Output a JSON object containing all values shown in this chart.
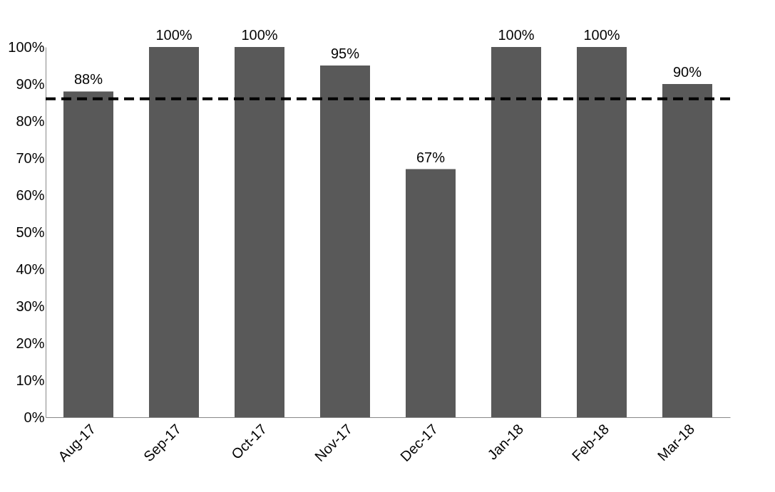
{
  "chart_data": {
    "type": "bar",
    "categories": [
      "Aug-17",
      "Sep-17",
      "Oct-17",
      "Nov-17",
      "Dec-17",
      "Jan-18",
      "Feb-18",
      "Mar-18"
    ],
    "values": [
      88,
      100,
      100,
      95,
      67,
      100,
      100,
      90
    ],
    "value_labels": [
      "88%",
      "100%",
      "100%",
      "95%",
      "67%",
      "100%",
      "100%",
      "90%"
    ],
    "color": "#595959",
    "ylim": [
      0,
      100
    ],
    "yticks": [
      {
        "value": 0,
        "label": "0%"
      },
      {
        "value": 10,
        "label": "10%"
      },
      {
        "value": 20,
        "label": "20%"
      },
      {
        "value": 30,
        "label": "30%"
      },
      {
        "value": 40,
        "label": "40%"
      },
      {
        "value": 50,
        "label": "50%"
      },
      {
        "value": 60,
        "label": "60%"
      },
      {
        "value": 70,
        "label": "70%"
      },
      {
        "value": 80,
        "label": "80%"
      },
      {
        "value": 90,
        "label": "90%"
      },
      {
        "value": 100,
        "label": "100%"
      }
    ],
    "ref_lines": [
      {
        "axis": "y",
        "value": 86,
        "color": "#000000",
        "line_style": "dashed"
      }
    ],
    "grid": false
  }
}
